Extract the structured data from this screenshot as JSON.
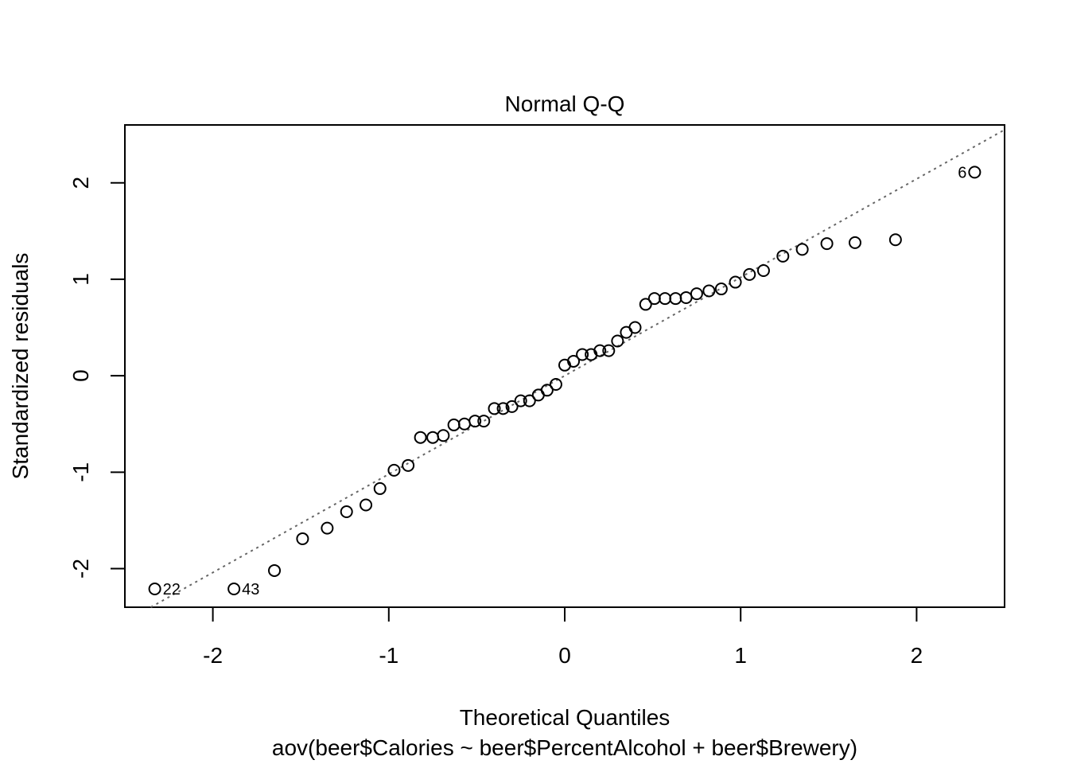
{
  "chart_data": {
    "type": "scatter",
    "title": "Normal Q-Q",
    "xlabel": "Theoretical Quantiles",
    "sublabel": "aov(beer$Calories ~ beer$PercentAlcohol + beer$Brewery)",
    "ylabel": "Standardized residuals",
    "xlim": [
      -2.5,
      2.5
    ],
    "ylim": [
      -2.4,
      2.6
    ],
    "xticks": [
      -2,
      -1,
      0,
      1,
      2
    ],
    "yticks": [
      -2,
      -1,
      0,
      1,
      2
    ],
    "reference_line": {
      "slope": 1.02,
      "intercept": 0.0,
      "style": "dotted",
      "color": "#666666"
    },
    "series": [
      {
        "points": [
          [
            -2.33,
            -2.21
          ],
          [
            -1.88,
            -2.21
          ],
          [
            -1.65,
            -2.02
          ],
          [
            -1.49,
            -1.69
          ],
          [
            -1.35,
            -1.58
          ],
          [
            -1.24,
            -1.41
          ],
          [
            -1.13,
            -1.34
          ],
          [
            -1.05,
            -1.17
          ],
          [
            -0.97,
            -0.98
          ],
          [
            -0.89,
            -0.93
          ],
          [
            -0.82,
            -0.64
          ],
          [
            -0.75,
            -0.64
          ],
          [
            -0.69,
            -0.62
          ],
          [
            -0.63,
            -0.51
          ],
          [
            -0.57,
            -0.5
          ],
          [
            -0.51,
            -0.47
          ],
          [
            -0.46,
            -0.47
          ],
          [
            -0.4,
            -0.34
          ],
          [
            -0.35,
            -0.34
          ],
          [
            -0.3,
            -0.32
          ],
          [
            -0.25,
            -0.26
          ],
          [
            -0.2,
            -0.26
          ],
          [
            -0.15,
            -0.2
          ],
          [
            -0.1,
            -0.15
          ],
          [
            -0.05,
            -0.09
          ],
          [
            0.0,
            0.11
          ],
          [
            0.05,
            0.15
          ],
          [
            0.1,
            0.22
          ],
          [
            0.15,
            0.22
          ],
          [
            0.2,
            0.26
          ],
          [
            0.25,
            0.26
          ],
          [
            0.3,
            0.36
          ],
          [
            0.35,
            0.45
          ],
          [
            0.4,
            0.5
          ],
          [
            0.46,
            0.74
          ],
          [
            0.51,
            0.8
          ],
          [
            0.57,
            0.8
          ],
          [
            0.63,
            0.8
          ],
          [
            0.69,
            0.81
          ],
          [
            0.75,
            0.85
          ],
          [
            0.82,
            0.88
          ],
          [
            0.89,
            0.9
          ],
          [
            0.97,
            0.97
          ],
          [
            1.05,
            1.05
          ],
          [
            1.13,
            1.09
          ],
          [
            1.24,
            1.24
          ],
          [
            1.35,
            1.31
          ],
          [
            1.49,
            1.37
          ],
          [
            1.65,
            1.38
          ],
          [
            1.88,
            1.41
          ],
          [
            2.33,
            2.11
          ]
        ]
      }
    ],
    "point_labels": [
      {
        "text": "22",
        "x": -2.33,
        "y": -2.21,
        "side": "right"
      },
      {
        "text": "43",
        "x": -1.88,
        "y": -2.21,
        "side": "right"
      },
      {
        "text": "6",
        "x": 2.33,
        "y": 2.11,
        "side": "left"
      }
    ],
    "grid": false,
    "legend": "none"
  }
}
